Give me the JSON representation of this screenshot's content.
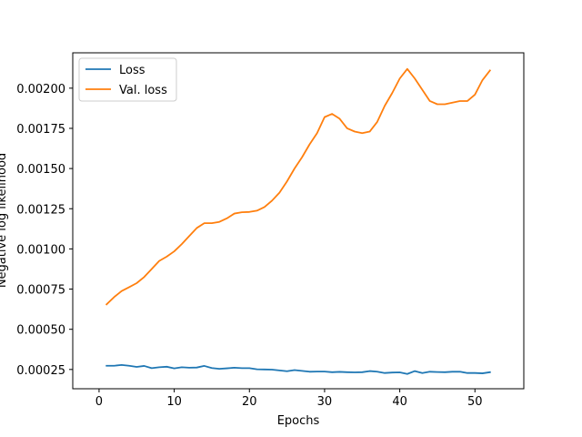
{
  "chart_data": {
    "type": "line",
    "title": "",
    "xlabel": "Epochs",
    "ylabel": "Negative log likelihood",
    "xlim": [
      -3.5,
      56.5
    ],
    "ylim": [
      0.00013,
      0.00222
    ],
    "xticks": [
      0,
      10,
      20,
      30,
      40,
      50
    ],
    "yticks": [
      0.00025,
      0.0005,
      0.00075,
      0.001,
      0.00125,
      0.0015,
      0.00175,
      0.002
    ],
    "ytick_labels": [
      "0.00025",
      "0.00050",
      "0.00075",
      "0.00100",
      "0.00125",
      "0.00150",
      "0.00175",
      "0.00200"
    ],
    "grid": false,
    "legend_position": "top-left",
    "x": [
      1,
      2,
      3,
      4,
      5,
      6,
      7,
      8,
      9,
      10,
      11,
      12,
      13,
      14,
      15,
      16,
      17,
      18,
      19,
      20,
      21,
      22,
      23,
      24,
      25,
      26,
      27,
      28,
      29,
      30,
      31,
      32,
      33,
      34,
      35,
      36,
      37,
      38,
      39,
      40,
      41,
      42,
      43,
      44,
      45,
      46,
      47,
      48,
      49,
      50,
      51,
      52
    ],
    "series": [
      {
        "name": "Loss",
        "color": "#1f77b4",
        "values": [
          0.000273,
          0.000273,
          0.000278,
          0.000273,
          0.000266,
          0.000272,
          0.000258,
          0.000264,
          0.000267,
          0.000257,
          0.000264,
          0.000261,
          0.000262,
          0.000272,
          0.000259,
          0.000254,
          0.000257,
          0.000261,
          0.000258,
          0.000258,
          0.000251,
          0.00025,
          0.000249,
          0.000244,
          0.000239,
          0.000246,
          0.000241,
          0.000236,
          0.000237,
          0.000237,
          0.000233,
          0.000235,
          0.000233,
          0.000232,
          0.000233,
          0.00024,
          0.000236,
          0.000228,
          0.000231,
          0.000232,
          0.000222,
          0.00024,
          0.000228,
          0.000236,
          0.000234,
          0.000233,
          0.000236,
          0.000236,
          0.000228,
          0.000228,
          0.000226,
          0.000233
        ]
      },
      {
        "name": "Val. loss",
        "color": "#ff7f0e",
        "values": [
          0.000655,
          0.0007,
          0.000738,
          0.000762,
          0.000787,
          0.000825,
          0.000875,
          0.000925,
          0.000952,
          0.000985,
          0.00103,
          0.00108,
          0.00113,
          0.00116,
          0.00116,
          0.001168,
          0.00119,
          0.00122,
          0.001228,
          0.00123,
          0.001238,
          0.00126,
          0.0013,
          0.00135,
          0.00142,
          0.0015,
          0.00157,
          0.00165,
          0.00172,
          0.00182,
          0.00184,
          0.00181,
          0.00175,
          0.00173,
          0.00172,
          0.00173,
          0.00179,
          0.00189,
          0.00197,
          0.00206,
          0.00212,
          0.00206,
          0.00199,
          0.00192,
          0.0019,
          0.0019,
          0.00191,
          0.00192,
          0.00192,
          0.00196,
          0.00205,
          0.00211
        ]
      }
    ]
  }
}
